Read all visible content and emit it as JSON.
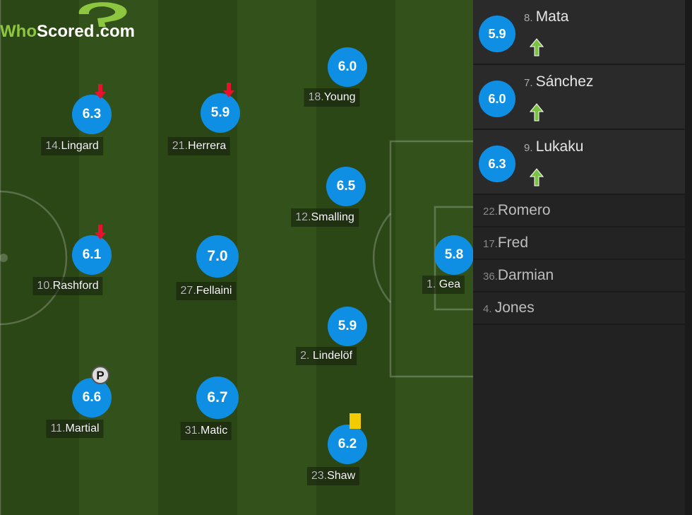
{
  "colors": {
    "rating": "#0f8fe3",
    "sub_off": "#e8112d",
    "sub_on": "#7bc142",
    "yellow_card": "#f2cc00",
    "brand": "#8dc63f"
  },
  "players": [
    {
      "num": "14.",
      "name": "Lingard",
      "rating": "6.3",
      "event": "arrow-down-icon"
    },
    {
      "num": "21.",
      "name": "Herrera",
      "rating": "5.9",
      "event": "arrow-down-icon"
    },
    {
      "num": "18.",
      "name": "Young",
      "rating": "6.0"
    },
    {
      "num": "12.",
      "name": "Smalling",
      "rating": "6.5"
    },
    {
      "num": "10.",
      "name": "Rashford",
      "rating": "6.1",
      "event": "arrow-down-icon"
    },
    {
      "num": "27.",
      "name": "Fellaini",
      "rating": "7.0"
    },
    {
      "num": "1. ",
      "name": "Gea",
      "rating": "5.8"
    },
    {
      "num": "2. ",
      "name": "Lindelöf",
      "rating": "5.9"
    },
    {
      "num": "11.",
      "name": "Martial",
      "rating": "6.6",
      "event": "missed-penalty-icon"
    },
    {
      "num": "31.",
      "name": "Matic",
      "rating": "6.7"
    },
    {
      "num": "23.",
      "name": "Shaw",
      "rating": "6.2",
      "event": "yellow-card-icon"
    }
  ],
  "subs_used": [
    {
      "num": "8. ",
      "name": "Mata",
      "rating": "5.9"
    },
    {
      "num": "7. ",
      "name": "Sánchez",
      "rating": "6.0"
    },
    {
      "num": "9. ",
      "name": "Lukaku",
      "rating": "6.3"
    }
  ],
  "bench": [
    {
      "num": "22.",
      "name": "Romero"
    },
    {
      "num": "17.",
      "name": "Fred"
    },
    {
      "num": "36.",
      "name": "Darmian"
    },
    {
      "num": " 4. ",
      "name": "Jones"
    }
  ],
  "logo": {
    "text_a": "Who",
    "text_b": "Scored",
    "text_c": ".com"
  }
}
